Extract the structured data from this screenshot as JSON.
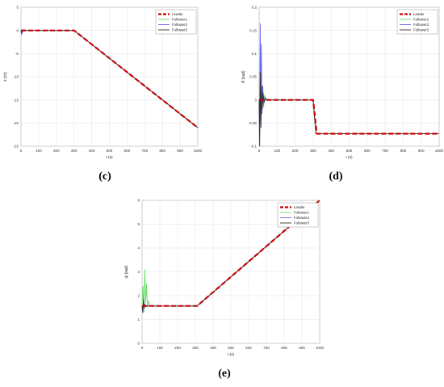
{
  "panel_labels": [
    "(c)",
    "(d)",
    "(e)"
  ],
  "legend_colors": {
    "Leader": "#cc0000",
    "Follower1": "#66dd66",
    "Follower2": "#6666ee",
    "Follower3": "#333333"
  },
  "chart_data": [
    {
      "id": "c",
      "type": "line",
      "title": "",
      "xlabel": "t (s)",
      "ylabel": "z (m)",
      "xlim": [
        0,
        1000
      ],
      "ylim": [
        -25,
        5
      ],
      "xticks": [
        0,
        100,
        200,
        300,
        400,
        500,
        600,
        700,
        800,
        900,
        1000
      ],
      "yticks": [
        5,
        0,
        -5,
        -10,
        -15,
        -20,
        -25
      ],
      "grid": true,
      "legend": "top-right",
      "series": [
        {
          "name": "Leader",
          "x": [
            0,
            300,
            1000
          ],
          "y": [
            0,
            0,
            -21
          ]
        },
        {
          "name": "Follower1",
          "x": [
            0,
            3,
            8,
            15,
            25,
            40,
            300,
            1000
          ],
          "y": [
            0,
            -0.6,
            -0.3,
            0.1,
            0,
            0,
            0,
            -21
          ]
        },
        {
          "name": "Follower2",
          "x": [
            0,
            3,
            8,
            15,
            25,
            40,
            300,
            1000
          ],
          "y": [
            0,
            -0.9,
            -0.4,
            0.1,
            0,
            0,
            0,
            -21
          ]
        },
        {
          "name": "Follower3",
          "x": [
            0,
            3,
            8,
            15,
            25,
            40,
            300,
            1000
          ],
          "y": [
            0,
            -0.5,
            -0.2,
            0.1,
            0,
            0,
            0,
            -21
          ]
        }
      ]
    },
    {
      "id": "d",
      "type": "line",
      "title": "",
      "xlabel": "t (s)",
      "ylabel": "θ (rad)",
      "xlim": [
        0,
        1000
      ],
      "ylim": [
        -0.1,
        0.2
      ],
      "xticks": [
        0,
        100,
        200,
        300,
        400,
        500,
        600,
        700,
        800,
        900,
        1000
      ],
      "yticks": [
        0.2,
        0.15,
        0.1,
        0.05,
        0,
        -0.05,
        -0.1
      ],
      "ytick_labels": [
        "0.2",
        "0.15",
        "0.1",
        "0.05",
        "0",
        "-0.05",
        "-0.1"
      ],
      "grid": true,
      "legend": "top-right",
      "series": [
        {
          "name": "Leader",
          "x": [
            0,
            300,
            320,
            1000
          ],
          "y": [
            0,
            0,
            -0.073,
            -0.073
          ]
        },
        {
          "name": "Follower1",
          "x": [
            0,
            5,
            10,
            15,
            20,
            25,
            30,
            40,
            50,
            300,
            315,
            325,
            1000
          ],
          "y": [
            0,
            -0.04,
            0.03,
            -0.03,
            0.02,
            -0.015,
            0.01,
            0,
            0,
            0,
            -0.073,
            -0.073,
            -0.073
          ]
        },
        {
          "name": "Follower2",
          "x": [
            0,
            3,
            6,
            9,
            12,
            16,
            20,
            25,
            30,
            40,
            300,
            315,
            325,
            1000
          ],
          "y": [
            0,
            -0.08,
            0.165,
            -0.05,
            0.12,
            -0.03,
            0.03,
            -0.01,
            0.005,
            0,
            0,
            -0.073,
            -0.073,
            -0.073
          ]
        },
        {
          "name": "Follower3",
          "x": [
            0,
            3,
            6,
            10,
            14,
            18,
            22,
            28,
            35,
            45,
            300,
            315,
            325,
            1000
          ],
          "y": [
            0,
            -0.1,
            0.06,
            -0.06,
            0.03,
            -0.02,
            0.015,
            -0.005,
            0.003,
            0,
            0,
            -0.073,
            -0.073,
            -0.073
          ]
        }
      ]
    },
    {
      "id": "e",
      "type": "line",
      "title": "",
      "xlabel": "t (s)",
      "ylabel": "ψ (rad)",
      "xlim": [
        0,
        1000
      ],
      "ylim": [
        0,
        6
      ],
      "xticks": [
        0,
        100,
        200,
        300,
        400,
        500,
        600,
        700,
        800,
        900,
        1000
      ],
      "yticks": [
        6,
        5,
        4,
        3,
        2,
        1,
        0
      ],
      "grid": true,
      "legend": "top-right",
      "series": [
        {
          "name": "Leader",
          "x": [
            0,
            310,
            1000
          ],
          "y": [
            1.57,
            1.57,
            6.0
          ]
        },
        {
          "name": "Follower1",
          "x": [
            0,
            5,
            10,
            15,
            20,
            25,
            30,
            35,
            45,
            60,
            310,
            1000
          ],
          "y": [
            1.57,
            2.4,
            1.3,
            3.1,
            1.7,
            2.5,
            1.5,
            1.8,
            1.57,
            1.57,
            1.57,
            6.0
          ]
        },
        {
          "name": "Follower2",
          "x": [
            0,
            4,
            8,
            12,
            16,
            22,
            30,
            310,
            1000
          ],
          "y": [
            1.57,
            1.35,
            1.9,
            1.45,
            1.65,
            1.55,
            1.57,
            1.57,
            6.0
          ]
        },
        {
          "name": "Follower3",
          "x": [
            0,
            4,
            8,
            12,
            18,
            25,
            310,
            1000
          ],
          "y": [
            1.57,
            1.3,
            1.8,
            1.5,
            1.6,
            1.57,
            1.57,
            6.0
          ]
        }
      ]
    }
  ]
}
